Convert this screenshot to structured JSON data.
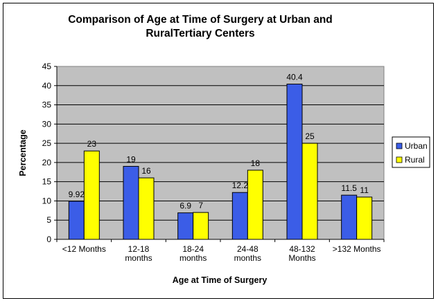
{
  "chart_data": {
    "type": "bar",
    "title_lines": [
      "Comparison of Age at Time of Surgery at Urban and",
      "RuralTertiary Centers"
    ],
    "xlabel": "Age at Time of Surgery",
    "ylabel": "Percentage",
    "ylim": [
      0,
      45
    ],
    "ytick_step": 5,
    "yticks": [
      "0",
      "5",
      "10",
      "15",
      "20",
      "25",
      "30",
      "35",
      "40",
      "45"
    ],
    "grid": true,
    "legend_position": "right",
    "categories": [
      [
        "<12 Months"
      ],
      [
        "12-18",
        "months"
      ],
      [
        "18-24",
        "months"
      ],
      [
        "24-48",
        "months"
      ],
      [
        "48-132",
        "Months"
      ],
      [
        ">132 Months"
      ]
    ],
    "series": [
      {
        "name": "Urban",
        "color": "#3b5de7",
        "values": [
          9.92,
          19,
          6.9,
          12.2,
          40.4,
          11.5
        ],
        "labels": [
          "9.92",
          "19",
          "6.9",
          "12.2",
          "40.4",
          "11.5"
        ]
      },
      {
        "name": "Rural",
        "color": "#ffff00",
        "values": [
          23,
          16,
          7,
          18,
          25,
          11
        ],
        "labels": [
          "23",
          "16",
          "7",
          "18",
          "25",
          "11"
        ]
      }
    ],
    "plot_background": "#c0c0c0"
  }
}
